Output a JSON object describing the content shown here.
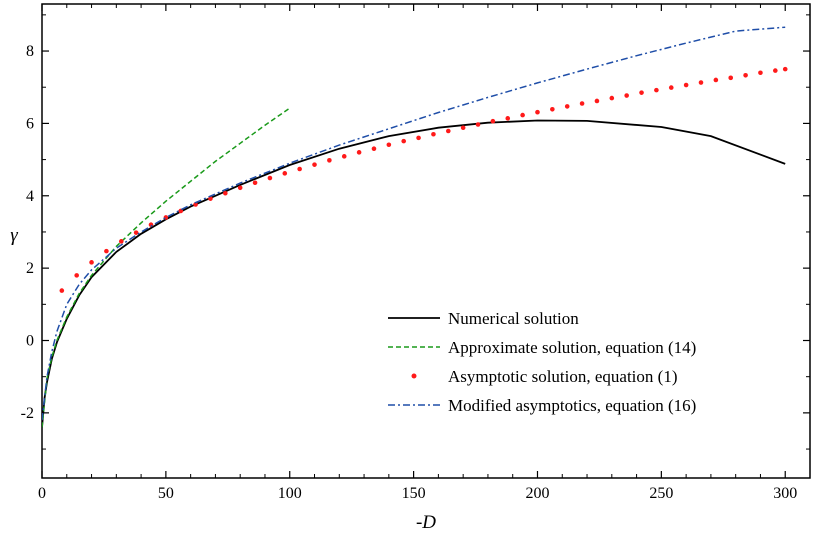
{
  "chart_data": {
    "type": "line",
    "xlabel": "-D",
    "ylabel": "γ",
    "xlim": [
      0,
      310
    ],
    "ylim": [
      -3.8,
      9.3
    ],
    "xticks": [
      0,
      50,
      100,
      150,
      200,
      250,
      300
    ],
    "yticks": [
      -2,
      0,
      2,
      4,
      6,
      8
    ],
    "ytick_labels": [
      "-2",
      "0",
      "2",
      "4",
      "6",
      "8"
    ],
    "grid": false,
    "legend_position": "bottom-right",
    "series": [
      {
        "name": "Numerical solution",
        "style": "solid",
        "color": "#000000",
        "x": [
          0,
          1,
          2,
          4,
          6,
          10,
          15,
          20,
          30,
          40,
          50,
          60,
          70,
          80,
          100,
          120,
          140,
          160,
          180,
          200,
          220,
          250,
          270,
          300
        ],
        "y": [
          -2.4,
          -1.6,
          -1.15,
          -0.5,
          -0.05,
          0.6,
          1.25,
          1.75,
          2.45,
          2.95,
          3.35,
          3.7,
          4.0,
          4.3,
          4.85,
          5.3,
          5.65,
          5.88,
          6.02,
          6.08,
          6.07,
          5.9,
          5.65,
          4.88
        ]
      },
      {
        "name": "Approximate solution, equation (14)",
        "style": "dashed",
        "color": "#1a9a1a",
        "x": [
          0,
          2,
          4,
          6,
          10,
          15,
          20,
          30,
          40,
          50,
          60,
          70,
          80,
          90,
          100
        ],
        "y": [
          -2.4,
          -1.05,
          -0.45,
          0.0,
          0.65,
          1.3,
          1.8,
          2.6,
          3.25,
          3.85,
          4.4,
          4.95,
          5.45,
          5.95,
          6.42
        ]
      },
      {
        "name": "Asymptotic solution, equation (1)",
        "style": "dots",
        "color": "#ff1a1a",
        "x": [
          8,
          14,
          20,
          26,
          32,
          38,
          44,
          50,
          56,
          62,
          68,
          74,
          80,
          86,
          92,
          98,
          104,
          110,
          116,
          122,
          128,
          134,
          140,
          146,
          152,
          158,
          164,
          170,
          176,
          182,
          188,
          194,
          200,
          206,
          212,
          218,
          224,
          230,
          236,
          242,
          248,
          254,
          260,
          266,
          272,
          278,
          284,
          290,
          296,
          300
        ],
        "y": [
          1.38,
          1.8,
          2.16,
          2.47,
          2.74,
          2.98,
          3.2,
          3.4,
          3.58,
          3.76,
          3.92,
          4.07,
          4.22,
          4.36,
          4.49,
          4.62,
          4.74,
          4.86,
          4.98,
          5.09,
          5.2,
          5.3,
          5.41,
          5.51,
          5.6,
          5.7,
          5.79,
          5.88,
          5.97,
          6.06,
          6.14,
          6.23,
          6.31,
          6.39,
          6.47,
          6.55,
          6.62,
          6.7,
          6.77,
          6.85,
          6.92,
          6.99,
          7.06,
          7.13,
          7.2,
          7.26,
          7.33,
          7.4,
          7.46,
          7.5
        ]
      },
      {
        "name": "Modified asymptotics, equation (16)",
        "style": "dashdot",
        "color": "#1f4ea8",
        "x": [
          0,
          2,
          4,
          6,
          10,
          15,
          20,
          30,
          40,
          50,
          60,
          70,
          80,
          100,
          120,
          140,
          160,
          180,
          200,
          220,
          240,
          260,
          280,
          300
        ],
        "y": [
          -2.2,
          -1.0,
          -0.3,
          0.25,
          1.0,
          1.55,
          1.95,
          2.55,
          3.0,
          3.4,
          3.75,
          4.05,
          4.35,
          4.9,
          5.4,
          5.85,
          6.3,
          6.72,
          7.12,
          7.5,
          7.87,
          8.22,
          8.55,
          8.66
        ]
      }
    ]
  }
}
